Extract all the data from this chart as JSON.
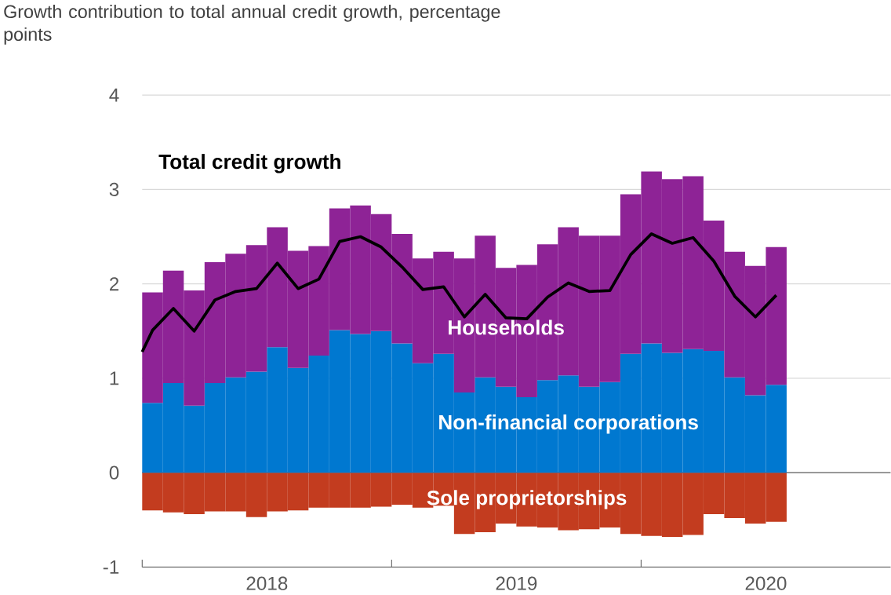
{
  "chart_data": {
    "type": "bar",
    "stacked": true,
    "title": "Growth contribution to total annual credit growth, percentage points",
    "x": [
      "2018-01-16",
      "2018-02-16",
      "2018-03-16",
      "2018-04-16",
      "2018-05-16",
      "2018-06-16",
      "2018-07-16",
      "2018-08-16",
      "2018-09-16",
      "2018-10-16",
      "2018-11-16",
      "2018-12-16",
      "2019-01-16",
      "2019-02-16",
      "2019-03-16",
      "2019-04-16",
      "2019-05-16",
      "2019-06-16",
      "2019-07-16",
      "2019-08-16",
      "2019-09-16",
      "2019-10-16",
      "2019-11-16",
      "2019-12-16",
      "2020-01-16",
      "2020-02-16",
      "2020-03-16",
      "2020-04-16",
      "2020-05-16",
      "2020-06-16",
      "2020-07-16"
    ],
    "series": [
      {
        "name": "Sole proprietorships",
        "color": "#c33c1f",
        "values": [
          -0.4,
          -0.42,
          -0.44,
          -0.41,
          -0.41,
          -0.47,
          -0.41,
          -0.4,
          -0.37,
          -0.37,
          -0.37,
          -0.36,
          -0.34,
          -0.37,
          -0.35,
          -0.65,
          -0.63,
          -0.54,
          -0.57,
          -0.58,
          -0.61,
          -0.6,
          -0.58,
          -0.65,
          -0.67,
          -0.68,
          -0.66,
          -0.44,
          -0.48,
          -0.54,
          -0.52
        ]
      },
      {
        "name": "Non-financial corporations",
        "color": "#0078d0",
        "values": [
          0.74,
          0.95,
          0.71,
          0.95,
          1.01,
          1.07,
          1.33,
          1.11,
          1.24,
          1.51,
          1.47,
          1.5,
          1.37,
          1.16,
          1.26,
          0.85,
          1.01,
          0.91,
          0.8,
          0.98,
          1.03,
          0.91,
          0.96,
          1.26,
          1.37,
          1.27,
          1.31,
          1.29,
          1.01,
          0.82,
          0.93
        ]
      },
      {
        "name": "Households",
        "color": "#8e2396",
        "values": [
          1.17,
          1.19,
          1.22,
          1.28,
          1.31,
          1.34,
          1.27,
          1.24,
          1.16,
          1.29,
          1.36,
          1.24,
          1.16,
          1.11,
          1.08,
          1.42,
          1.5,
          1.26,
          1.4,
          1.44,
          1.57,
          1.6,
          1.55,
          1.69,
          1.82,
          1.84,
          1.83,
          1.38,
          1.33,
          1.37,
          1.46
        ]
      },
      {
        "name": "Total credit growth",
        "type": "line",
        "color": "#000000",
        "x": [
          "2018-01-01",
          "2018-01-16",
          "2018-02-16",
          "2018-03-16",
          "2018-04-16",
          "2018-05-16",
          "2018-06-16",
          "2018-07-16",
          "2018-08-16",
          "2018-09-16",
          "2018-10-16",
          "2018-11-16",
          "2018-12-16",
          "2019-01-16",
          "2019-02-16",
          "2019-03-16",
          "2019-04-16",
          "2019-05-16",
          "2019-06-16",
          "2019-07-16",
          "2019-08-16",
          "2019-09-16",
          "2019-10-16",
          "2019-11-16",
          "2019-12-16",
          "2020-01-16",
          "2020-02-16",
          "2020-03-16",
          "2020-04-16",
          "2020-05-16",
          "2020-06-16",
          "2020-07-16"
        ],
        "values": [
          1.28,
          1.51,
          1.74,
          1.5,
          1.83,
          1.92,
          1.95,
          2.22,
          1.95,
          2.05,
          2.45,
          2.5,
          2.39,
          2.18,
          1.94,
          1.97,
          1.65,
          1.89,
          1.64,
          1.63,
          1.86,
          2.01,
          1.92,
          1.93,
          2.31,
          2.53,
          2.43,
          2.49,
          2.24,
          1.87,
          1.65,
          1.88
        ]
      }
    ],
    "xlim": [
      "2018-01-01",
      "2021-01-01"
    ],
    "xticks": [
      {
        "value": "2018-01-01",
        "label": null
      },
      {
        "value": "2018-07-01",
        "label": "2018"
      },
      {
        "value": "2019-01-01",
        "label": null
      },
      {
        "value": "2019-07-01",
        "label": "2019"
      },
      {
        "value": "2020-01-01",
        "label": null
      },
      {
        "value": "2020-07-01",
        "label": "2020"
      }
    ],
    "ylim": [
      -1,
      4
    ],
    "yticks": [
      -1,
      0,
      1,
      2,
      3,
      4
    ],
    "grid": "y",
    "ref_lines": [
      {
        "axis": "y",
        "value": 0,
        "color": "#666666"
      }
    ]
  }
}
